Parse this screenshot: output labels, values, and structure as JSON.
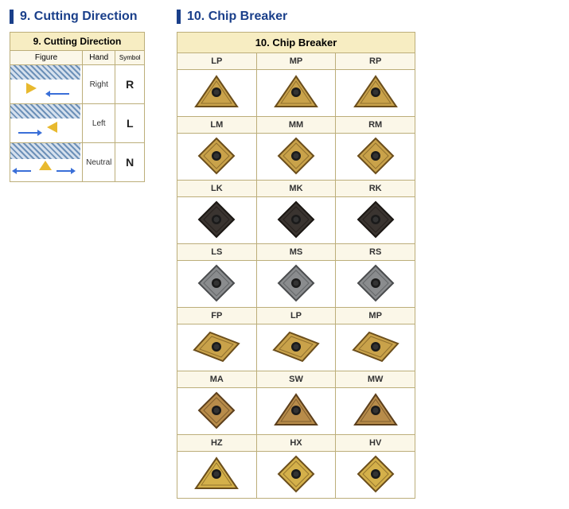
{
  "cutting_direction": {
    "heading": "9. Cutting Direction",
    "table_title": "9. Cutting Direction",
    "headers": {
      "figure": "Figure",
      "hand": "Hand",
      "symbol": "Symbol"
    },
    "rows": [
      {
        "hand": "Right",
        "symbol": "R"
      },
      {
        "hand": "Left",
        "symbol": "L"
      },
      {
        "hand": "Neutral",
        "symbol": "N"
      }
    ]
  },
  "chip_breaker": {
    "heading": "10. Chip Breaker",
    "table_title": "10. Chip Breaker",
    "rows": [
      {
        "labels": [
          "LP",
          "MP",
          "RP"
        ],
        "shape": "triangle",
        "fill": "#c9a24a",
        "stroke": "#6b4e1c"
      },
      {
        "labels": [
          "LM",
          "MM",
          "RM"
        ],
        "shape": "diamond",
        "fill": "#c9a24a",
        "stroke": "#6b4e1c"
      },
      {
        "labels": [
          "LK",
          "MK",
          "RK"
        ],
        "shape": "diamond",
        "fill": "#3a3430",
        "stroke": "#1a1612"
      },
      {
        "labels": [
          "LS",
          "MS",
          "RS"
        ],
        "shape": "diamond",
        "fill": "#8a8c8e",
        "stroke": "#4a4c4e"
      },
      {
        "labels": [
          "FP",
          "LP",
          "MP"
        ],
        "shape": "rhombus",
        "fill": "#c9a24a",
        "stroke": "#6b4e1c"
      },
      {
        "labels": [
          "MA",
          "SW",
          "MW"
        ],
        "shape": "mixed1",
        "fill": "#b88c4a",
        "stroke": "#5c3f1c"
      },
      {
        "labels": [
          "HZ",
          "HX",
          "HV"
        ],
        "shape": "mixed2",
        "fill": "#d4b04a",
        "stroke": "#6b4e1c"
      }
    ]
  },
  "style": {
    "heading_color": "#1a3f8a",
    "border_color": "#bcae7a",
    "title_bg": "#f7edc2",
    "label_bg": "#fbf7e8"
  }
}
